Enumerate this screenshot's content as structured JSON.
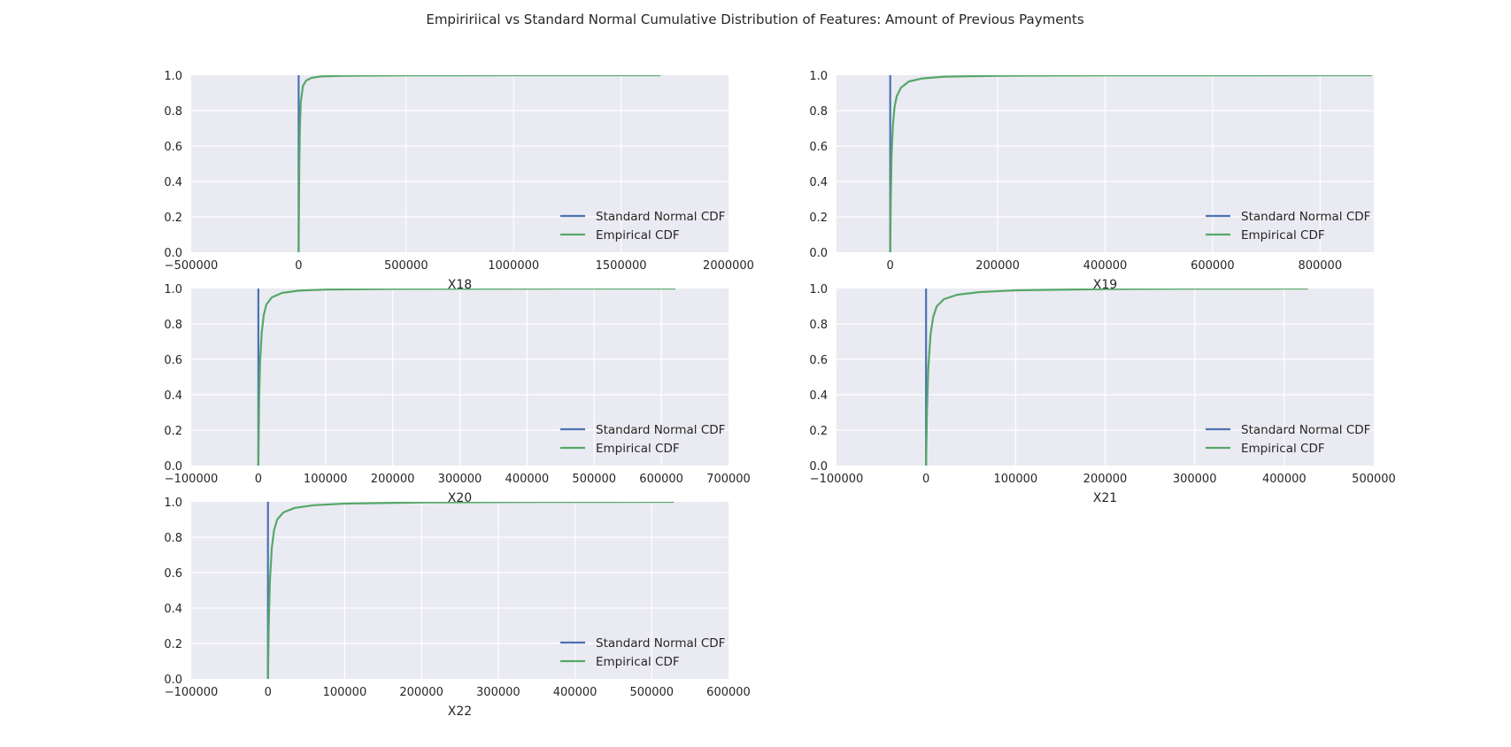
{
  "figure": {
    "title": "Empiririical vs Standard Normal Cumulative Distribution of Features: Amount of Previous Payments"
  },
  "colors": {
    "axes_background": "#EAEAF2",
    "grid": "#FFFFFF",
    "standard_normal_cdf": "#4C72B0",
    "empirical_cdf": "#55A868",
    "text": "#262626"
  },
  "chart_data": [
    {
      "type": "line",
      "xlabel": "X18",
      "ylabel": "",
      "xlim": [
        -500000,
        2000000
      ],
      "ylim": [
        0.0,
        1.0
      ],
      "xticks": [
        "−500000",
        "0",
        "500000",
        "1000000",
        "1500000",
        "2000000"
      ],
      "xtick_values": [
        -500000,
        0,
        500000,
        1000000,
        1500000,
        2000000
      ],
      "yticks": [
        "0.0",
        "0.2",
        "0.4",
        "0.6",
        "0.8",
        "1.0"
      ],
      "ytick_values": [
        0.0,
        0.2,
        0.4,
        0.6,
        0.8,
        1.0
      ],
      "grid": true,
      "legend_position": "lower right",
      "series": [
        {
          "name": "Standard Normal CDF",
          "x": [
            -3,
            -2,
            -1,
            0,
            1,
            2,
            3
          ],
          "y": [
            0.0,
            0.0,
            0.16,
            0.5,
            0.84,
            1.0,
            1.0
          ]
        },
        {
          "name": "Empirical CDF",
          "x": [
            0,
            1000,
            3000,
            6000,
            10000,
            20000,
            35000,
            60000,
            100000,
            200000,
            500000,
            1000000,
            1684259
          ],
          "y": [
            0.0,
            0.2,
            0.5,
            0.72,
            0.85,
            0.94,
            0.97,
            0.985,
            0.993,
            0.997,
            0.999,
            0.9998,
            1.0
          ]
        }
      ]
    },
    {
      "type": "line",
      "xlabel": "X19",
      "ylabel": "",
      "xlim": [
        -100000,
        900000
      ],
      "ylim": [
        0.0,
        1.0
      ],
      "xticks": [
        "0",
        "200000",
        "400000",
        "600000",
        "800000"
      ],
      "xtick_values": [
        0,
        200000,
        400000,
        600000,
        800000
      ],
      "yticks": [
        "0.0",
        "0.2",
        "0.4",
        "0.6",
        "0.8",
        "1.0"
      ],
      "ytick_values": [
        0.0,
        0.2,
        0.4,
        0.6,
        0.8,
        1.0
      ],
      "grid": true,
      "legend_position": "lower right",
      "series": [
        {
          "name": "Standard Normal CDF",
          "x": [
            -3,
            -2,
            -1,
            0,
            1,
            2,
            3
          ],
          "y": [
            0.0,
            0.0,
            0.16,
            0.5,
            0.84,
            1.0,
            1.0
          ]
        },
        {
          "name": "Empirical CDF",
          "x": [
            0,
            1000,
            2500,
            5000,
            8000,
            12000,
            20000,
            35000,
            60000,
            100000,
            200000,
            400000,
            896040
          ],
          "y": [
            0.0,
            0.3,
            0.55,
            0.72,
            0.82,
            0.88,
            0.93,
            0.965,
            0.982,
            0.992,
            0.997,
            0.999,
            1.0
          ]
        }
      ]
    },
    {
      "type": "line",
      "xlabel": "X20",
      "ylabel": "",
      "xlim": [
        -100000,
        700000
      ],
      "ylim": [
        0.0,
        1.0
      ],
      "xticks": [
        "−100000",
        "0",
        "100000",
        "200000",
        "300000",
        "400000",
        "500000",
        "600000",
        "700000"
      ],
      "xtick_values": [
        -100000,
        0,
        100000,
        200000,
        300000,
        400000,
        500000,
        600000,
        700000
      ],
      "yticks": [
        "0.0",
        "0.2",
        "0.4",
        "0.6",
        "0.8",
        "1.0"
      ],
      "ytick_values": [
        0.0,
        0.2,
        0.4,
        0.6,
        0.8,
        1.0
      ],
      "grid": true,
      "legend_position": "lower right",
      "series": [
        {
          "name": "Standard Normal CDF",
          "x": [
            -3,
            -2,
            -1,
            0,
            1,
            2,
            3
          ],
          "y": [
            0.0,
            0.0,
            0.16,
            0.5,
            0.84,
            1.0,
            1.0
          ]
        },
        {
          "name": "Empirical CDF",
          "x": [
            0,
            1000,
            2500,
            5000,
            8000,
            12000,
            20000,
            35000,
            60000,
            100000,
            200000,
            400000,
            621000
          ],
          "y": [
            0.0,
            0.35,
            0.58,
            0.75,
            0.85,
            0.91,
            0.95,
            0.975,
            0.988,
            0.994,
            0.998,
            0.9995,
            1.0
          ]
        }
      ]
    },
    {
      "type": "line",
      "xlabel": "X21",
      "ylabel": "",
      "xlim": [
        -100000,
        500000
      ],
      "ylim": [
        0.0,
        1.0
      ],
      "xticks": [
        "−100000",
        "0",
        "100000",
        "200000",
        "300000",
        "400000",
        "500000"
      ],
      "xtick_values": [
        -100000,
        0,
        100000,
        200000,
        300000,
        400000,
        500000
      ],
      "yticks": [
        "0.0",
        "0.2",
        "0.4",
        "0.6",
        "0.8",
        "1.0"
      ],
      "ytick_values": [
        0.0,
        0.2,
        0.4,
        0.6,
        0.8,
        1.0
      ],
      "grid": true,
      "legend_position": "lower right",
      "series": [
        {
          "name": "Standard Normal CDF",
          "x": [
            -3,
            -2,
            -1,
            0,
            1,
            2,
            3
          ],
          "y": [
            0.0,
            0.0,
            0.16,
            0.5,
            0.84,
            1.0,
            1.0
          ]
        },
        {
          "name": "Empirical CDF",
          "x": [
            0,
            1000,
            2500,
            5000,
            8000,
            12000,
            20000,
            35000,
            60000,
            100000,
            200000,
            300000,
            426529
          ],
          "y": [
            0.0,
            0.3,
            0.55,
            0.74,
            0.84,
            0.9,
            0.94,
            0.965,
            0.98,
            0.99,
            0.997,
            0.999,
            1.0
          ]
        }
      ]
    },
    {
      "type": "line",
      "xlabel": "X22",
      "ylabel": "",
      "xlim": [
        -100000,
        600000
      ],
      "ylim": [
        0.0,
        1.0
      ],
      "xticks": [
        "−100000",
        "0",
        "100000",
        "200000",
        "300000",
        "400000",
        "500000",
        "600000"
      ],
      "xtick_values": [
        -100000,
        0,
        100000,
        200000,
        300000,
        400000,
        500000,
        600000
      ],
      "yticks": [
        "0.0",
        "0.2",
        "0.4",
        "0.6",
        "0.8",
        "1.0"
      ],
      "ytick_values": [
        0.0,
        0.2,
        0.4,
        0.6,
        0.8,
        1.0
      ],
      "grid": true,
      "legend_position": "lower right",
      "series": [
        {
          "name": "Standard Normal CDF",
          "x": [
            -3,
            -2,
            -1,
            0,
            1,
            2,
            3
          ],
          "y": [
            0.0,
            0.0,
            0.16,
            0.5,
            0.84,
            1.0,
            1.0
          ]
        },
        {
          "name": "Empirical CDF",
          "x": [
            0,
            1000,
            2500,
            5000,
            8000,
            12000,
            20000,
            35000,
            60000,
            100000,
            200000,
            350000,
            528666
          ],
          "y": [
            0.0,
            0.3,
            0.55,
            0.74,
            0.84,
            0.9,
            0.94,
            0.966,
            0.981,
            0.99,
            0.997,
            0.999,
            1.0
          ]
        }
      ]
    }
  ]
}
